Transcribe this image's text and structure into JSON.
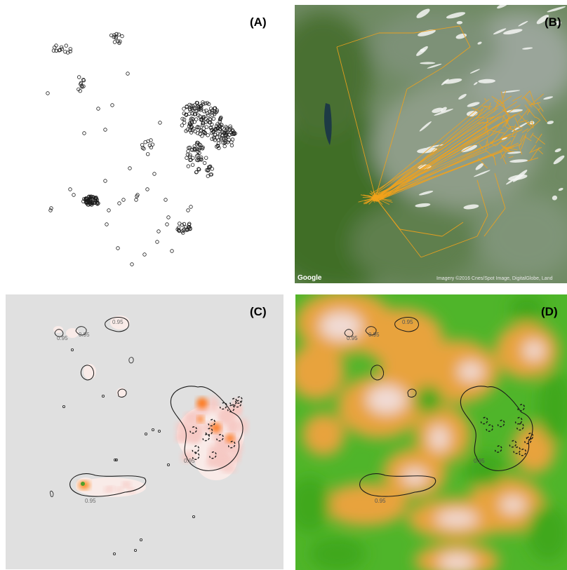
{
  "figure": {
    "panels": [
      {
        "id": "A",
        "label": "(A)"
      },
      {
        "id": "B",
        "label": "(B)"
      },
      {
        "id": "C",
        "label": "(C)"
      },
      {
        "id": "D",
        "label": "(D)"
      }
    ],
    "map": {
      "logo": "Google",
      "credit": "Imagery ©2016 Cnes/Spot Image, DigitalGlobe, Land"
    },
    "contour_label": "0.95",
    "colors": {
      "point_stroke": "#1a1a1a",
      "track": "#f2a21b",
      "contour": "#1a1a1a",
      "kde_low": "#f6c9c4",
      "kde_high": "#ff6a00",
      "panel_c_bg": "#e0e0e0"
    }
  }
}
